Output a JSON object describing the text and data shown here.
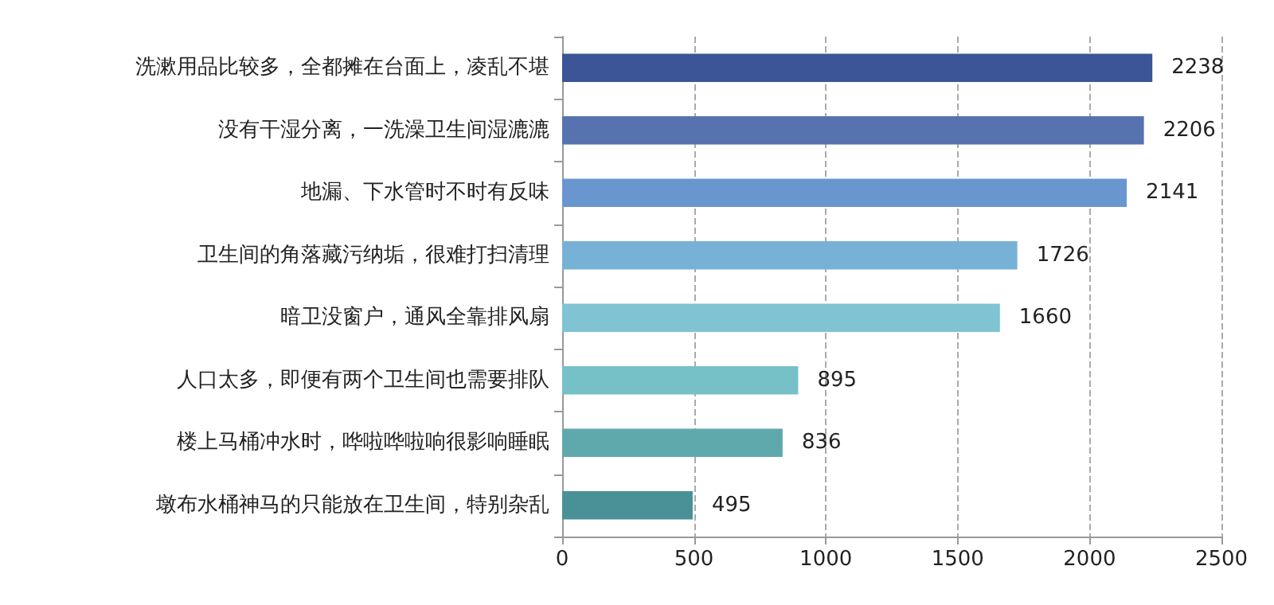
{
  "chart_data": {
    "type": "bar",
    "orientation": "horizontal",
    "categories": [
      "洗漱用品比较多，全都摊在台面上，凌乱不堪",
      "没有干湿分离，一洗澡卫生间湿漉漉",
      "地漏、下水管时不时有反味",
      "卫生间的角落藏污纳垢，很难打扫清理",
      "暗卫没窗户，通风全靠排风扇",
      "人口太多，即便有两个卫生间也需要排队",
      "楼上马桶冲水时，哗啦哗啦响很影响睡眠",
      "墩布水桶神马的只能放在卫生间，特别杂乱"
    ],
    "values": [
      2238,
      2206,
      2141,
      1726,
      1660,
      895,
      836,
      495
    ],
    "colors": [
      "#3b5596",
      "#5673b0",
      "#6a96cf",
      "#78b1d6",
      "#80c3d2",
      "#76c0c8",
      "#5fa9ad",
      "#4a9197"
    ],
    "xlim": [
      0,
      2500
    ],
    "xticks": [
      0,
      500,
      1000,
      1500,
      2000,
      2500
    ],
    "grid": "x",
    "data_labels": true
  }
}
